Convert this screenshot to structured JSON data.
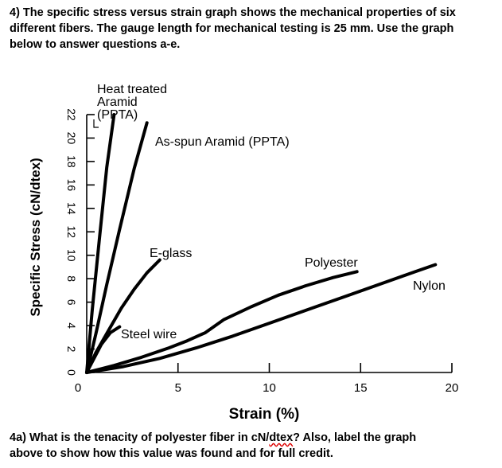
{
  "question": {
    "lines": [
      "4) The specific stress versus strain graph shows the mechanical properties of six",
      "different fibers. The gauge length for mechanical testing is 25 mm. Use the graph",
      "below to answer questions a-e."
    ]
  },
  "subquestion": {
    "pre": "4a) What is the tenacity of polyester fiber in cN/",
    "err": "dtex",
    "post": "? Also, label the graph",
    "line2": "above to show how this value was found and for full credit."
  },
  "chart_data": {
    "type": "line",
    "xlabel": "Strain (%)",
    "ylabel": "Specific Stress (cN/dtex)",
    "xlim": [
      0,
      20
    ],
    "ylim": [
      0,
      22
    ],
    "x_ticks": [
      "0",
      "5",
      "10",
      "15",
      "20"
    ],
    "y_ticks": [
      "0",
      "2",
      "4",
      "6",
      "8",
      "10",
      "12",
      "14",
      "16",
      "18",
      "20",
      "22"
    ],
    "grid": false,
    "series": [
      {
        "name": "Heat treated Aramid (PPTA)",
        "label_lines": [
          "Heat treated",
          "Aramid",
          "(PPTA)"
        ],
        "x": [
          0,
          0.3,
          0.7,
          1.1,
          1.5
        ],
        "y": [
          0,
          5.3,
          11.5,
          17.5,
          22
        ]
      },
      {
        "name": "As-spun Aramid (PPTA)",
        "x": [
          0,
          0.5,
          1.1,
          1.8,
          2.6,
          3.3
        ],
        "y": [
          0,
          3.3,
          7.5,
          12.2,
          17.4,
          21.3
        ]
      },
      {
        "name": "E-glass",
        "x": [
          0,
          0.5,
          1.2,
          1.9,
          2.6,
          3.3,
          4.0
        ],
        "y": [
          0,
          1.7,
          3.6,
          5.5,
          7.1,
          8.5,
          9.6
        ]
      },
      {
        "name": "Steel wire",
        "x": [
          0,
          0.3,
          0.8,
          1.3,
          1.8
        ],
        "y": [
          0,
          0.9,
          2.4,
          3.4,
          3.9
        ]
      },
      {
        "name": "Polyester",
        "x": [
          0,
          1.5,
          3,
          4.5,
          5.5,
          6.5,
          7.5,
          9,
          10.5,
          12,
          13.5,
          14.8
        ],
        "y": [
          0,
          0.6,
          1.3,
          2.1,
          2.7,
          3.4,
          4.5,
          5.6,
          6.6,
          7.4,
          8.1,
          8.6
        ]
      },
      {
        "name": "Nylon",
        "x": [
          0,
          2,
          4,
          6,
          8,
          10,
          12,
          14,
          16,
          18,
          19.1
        ],
        "y": [
          0,
          0.5,
          1.2,
          2.1,
          3.1,
          4.2,
          5.3,
          6.4,
          7.5,
          8.6,
          9.2
        ]
      }
    ]
  }
}
